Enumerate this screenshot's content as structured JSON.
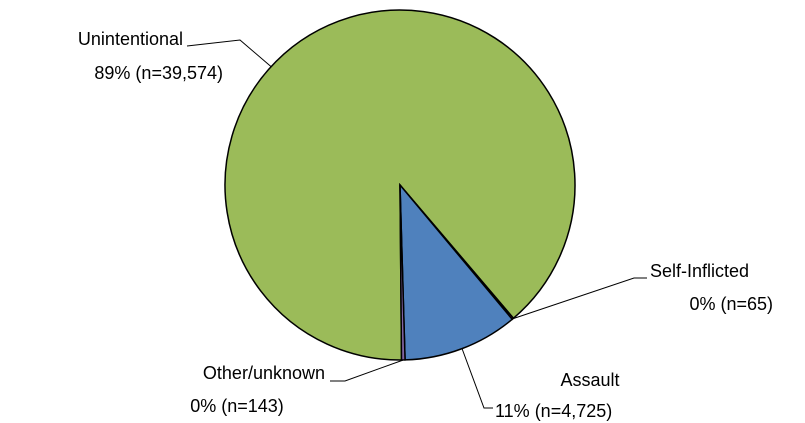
{
  "chart_data": {
    "type": "pie",
    "categories": [
      "Unintentional",
      "Self-Inflicted",
      "Assault",
      "Other/unknown"
    ],
    "values": [
      39574,
      65,
      4725,
      143
    ],
    "value_labels": [
      "89% (n=39,574)",
      "0% (n=65)",
      "11% (n=4,725)",
      "0% (n=143)"
    ],
    "colors": [
      "#9bbb59",
      "#c0504d",
      "#4f81bd",
      "#8064a2"
    ]
  }
}
